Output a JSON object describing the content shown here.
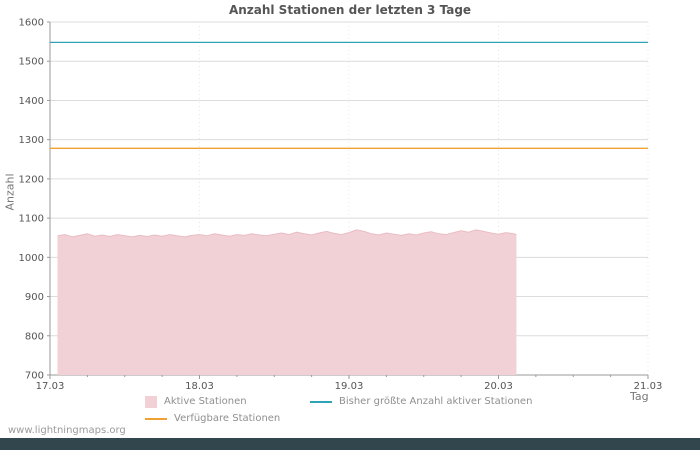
{
  "page": {
    "footer_text": "www.lightningmaps.org",
    "footer_bar_color": "#32464d"
  },
  "chart_data": {
    "type": "area",
    "title": "Anzahl Stationen der letzten 3 Tage",
    "xlabel": "Tag",
    "ylabel": "Anzahl",
    "ylim": [
      700,
      1600
    ],
    "xlim": [
      17,
      21
    ],
    "y_ticks": [
      700,
      800,
      900,
      1000,
      1100,
      1200,
      1300,
      1400,
      1500,
      1600
    ],
    "x_ticks": [
      {
        "value": 17,
        "label": "17.03"
      },
      {
        "value": 18,
        "label": "18.03"
      },
      {
        "value": 19,
        "label": "19.03"
      },
      {
        "value": 20,
        "label": "20.03"
      },
      {
        "value": 21,
        "label": "21.03"
      }
    ],
    "grid": true,
    "legend_position": "bottom",
    "style": {
      "grid_color": "#dcdcdc",
      "vgrid_color": "#e6e6e6",
      "axis_color": "#9a9a9a",
      "text_color": "#555555"
    },
    "series": [
      {
        "name": "Aktive Stationen",
        "type": "area",
        "color": "#f2d1d6",
        "edge_color": "#e9bcc2",
        "points": [
          [
            17.05,
            1055
          ],
          [
            17.1,
            1058
          ],
          [
            17.15,
            1052
          ],
          [
            17.2,
            1056
          ],
          [
            17.25,
            1060
          ],
          [
            17.3,
            1054
          ],
          [
            17.35,
            1057
          ],
          [
            17.4,
            1053
          ],
          [
            17.45,
            1058
          ],
          [
            17.5,
            1055
          ],
          [
            17.55,
            1052
          ],
          [
            17.6,
            1056
          ],
          [
            17.65,
            1053
          ],
          [
            17.7,
            1057
          ],
          [
            17.75,
            1054
          ],
          [
            17.8,
            1058
          ],
          [
            17.85,
            1055
          ],
          [
            17.9,
            1052
          ],
          [
            17.95,
            1056
          ],
          [
            18.0,
            1058
          ],
          [
            18.05,
            1055
          ],
          [
            18.1,
            1060
          ],
          [
            18.15,
            1057
          ],
          [
            18.2,
            1054
          ],
          [
            18.25,
            1058
          ],
          [
            18.3,
            1056
          ],
          [
            18.35,
            1060
          ],
          [
            18.4,
            1057
          ],
          [
            18.45,
            1055
          ],
          [
            18.5,
            1059
          ],
          [
            18.55,
            1062
          ],
          [
            18.6,
            1058
          ],
          [
            18.65,
            1064
          ],
          [
            18.7,
            1060
          ],
          [
            18.75,
            1057
          ],
          [
            18.8,
            1062
          ],
          [
            18.85,
            1066
          ],
          [
            18.9,
            1061
          ],
          [
            18.95,
            1058
          ],
          [
            19.0,
            1063
          ],
          [
            19.05,
            1070
          ],
          [
            19.1,
            1066
          ],
          [
            19.15,
            1060
          ],
          [
            19.2,
            1057
          ],
          [
            19.25,
            1062
          ],
          [
            19.3,
            1059
          ],
          [
            19.35,
            1056
          ],
          [
            19.4,
            1060
          ],
          [
            19.45,
            1057
          ],
          [
            19.5,
            1062
          ],
          [
            19.55,
            1065
          ],
          [
            19.6,
            1060
          ],
          [
            19.65,
            1058
          ],
          [
            19.7,
            1063
          ],
          [
            19.75,
            1068
          ],
          [
            19.8,
            1064
          ],
          [
            19.85,
            1070
          ],
          [
            19.9,
            1066
          ],
          [
            19.95,
            1062
          ],
          [
            20.0,
            1059
          ],
          [
            20.05,
            1063
          ],
          [
            20.1,
            1060
          ],
          [
            20.12,
            1058
          ]
        ]
      },
      {
        "name": "Bisher größte Anzahl aktiver Stationen",
        "type": "line",
        "color": "#2fa4b7",
        "value": 1548,
        "x_range": [
          17,
          21
        ]
      },
      {
        "name": "Verfügbare Stationen",
        "type": "line",
        "color": "#f0a132",
        "value": 1278,
        "x_range": [
          17,
          21
        ]
      }
    ]
  }
}
